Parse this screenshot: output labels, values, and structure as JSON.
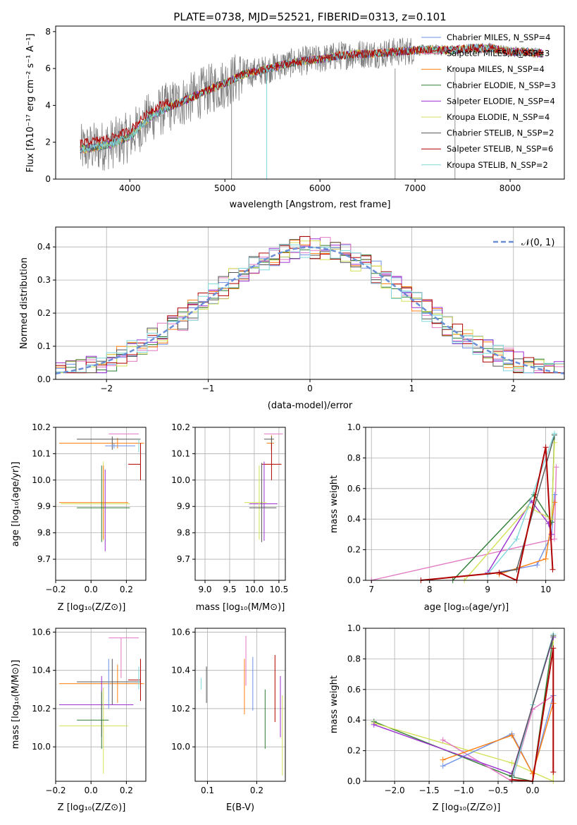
{
  "title": "PLATE=0738, MJD=52521, FIBERID=0313, z=0.101",
  "chart_data": [
    {
      "id": "spectrum",
      "type": "line",
      "xlabel": "wavelength [Angstrom, rest frame]",
      "ylabel": "Flux [fλ10⁻¹⁷ erg cm⁻² s⁻¹ A⁻¹]",
      "xlim": [
        3220,
        8570
      ],
      "ylim": [
        0,
        8.3
      ],
      "xticks": [
        4000,
        5000,
        6000,
        7000,
        8000
      ],
      "yticks": [
        0,
        2,
        4,
        6,
        8
      ],
      "legend_position": "upper-right",
      "series": [
        {
          "name": "Chabrier MILES, N_SSP=4",
          "color": "#6d8fe6"
        },
        {
          "name": "Salpeter MILES, N_SSP=3",
          "color": "#e377c2"
        },
        {
          "name": "Kroupa MILES, N_SSP=4",
          "color": "#ff7f0e"
        },
        {
          "name": "Chabrier ELODIE, N_SSP=3",
          "color": "#2e7d32"
        },
        {
          "name": "Salpeter ELODIE, N_SSP=4",
          "color": "#9b30d0"
        },
        {
          "name": "Kroupa ELODIE, N_SSP=4",
          "color": "#d4e157"
        },
        {
          "name": "Chabrier STELIB, N_SSP=2",
          "color": "#555555"
        },
        {
          "name": "Salpeter STELIB, N_SSP=6",
          "color": "#b00000"
        },
        {
          "name": "Kroupa STELIB, N_SSP=2",
          "color": "#7fd7dc"
        }
      ],
      "continuum": {
        "x": [
          3480,
          3600,
          3800,
          4000,
          4200,
          4400,
          4600,
          4800,
          5000,
          5200,
          5400,
          5600,
          5800,
          6000,
          6200,
          6400,
          6600,
          6800,
          7000,
          7200,
          7400,
          7600,
          7800,
          8000,
          8200,
          8350
        ],
        "y": [
          1.6,
          1.7,
          1.9,
          2.3,
          3.3,
          3.9,
          4.3,
          4.8,
          5.2,
          5.7,
          5.9,
          6.2,
          6.4,
          6.5,
          6.7,
          6.8,
          6.8,
          6.9,
          7.0,
          7.0,
          7.0,
          7.1,
          7.1,
          6.9,
          6.9,
          6.8
        ]
      }
    },
    {
      "id": "residuals",
      "type": "step",
      "xlabel": "(data-model)/error",
      "ylabel": "Normed distribution",
      "xlim": [
        -2.5,
        2.5
      ],
      "ylim": [
        0,
        0.46
      ],
      "xticks": [
        -2,
        -1,
        0,
        1,
        2
      ],
      "yticks": [
        0.0,
        0.1,
        0.2,
        0.3,
        0.4
      ],
      "reference_curve": {
        "name": "𝒩(0, 1)",
        "color": "#6a8fd6",
        "style": "dashed"
      },
      "bin_width": 0.1
    },
    {
      "id": "age_vs_Z",
      "type": "errorbar",
      "xlabel": "Z [log₁₀(Z/Z⊙)]",
      "ylabel": "age  [log₁₀(age/yr)]",
      "xlim": [
        -0.2,
        0.31
      ],
      "ylim": [
        9.62,
        10.2
      ],
      "xticks": [
        -0.2,
        0.0,
        0.2
      ],
      "yticks": [
        9.7,
        9.8,
        9.9,
        10.0,
        10.1,
        10.2
      ],
      "points": [
        {
          "x": 0.22,
          "y": 10.175,
          "xerr": [
            0.12,
            0.05
          ],
          "yerr": [
            0.0,
            0.0
          ],
          "series": 1
        },
        {
          "x": 0.15,
          "y": 10.14,
          "xerr": [
            0.33,
            0.15
          ],
          "yerr": [
            0.02,
            0.02
          ],
          "series": 2
        },
        {
          "x": 0.12,
          "y": 10.155,
          "xerr": [
            0.2,
            0.16
          ],
          "yerr": [
            0.04,
            0.01
          ],
          "series": 6
        },
        {
          "x": 0.13,
          "y": 10.13,
          "xerr": [
            0.05,
            0.12
          ],
          "yerr": [
            0.01,
            0.01
          ],
          "series": 0
        },
        {
          "x": 0.27,
          "y": 10.155,
          "xerr": [
            0.0,
            0.0
          ],
          "yerr": [
            0.05,
            0.0
          ],
          "series": 8
        },
        {
          "x": 0.28,
          "y": 10.06,
          "xerr": [
            0.07,
            0.0
          ],
          "yerr": [
            0.06,
            0.08
          ],
          "series": 7
        },
        {
          "x": 0.07,
          "y": 9.91,
          "xerr": [
            0.24,
            0.15
          ],
          "yerr": [
            0.14,
            0.16
          ],
          "series": 5
        },
        {
          "x": 0.07,
          "y": 9.915,
          "xerr": [
            0.25,
            0.14
          ],
          "yerr": [
            0.14,
            0.14
          ],
          "series": 2
        },
        {
          "x": 0.06,
          "y": 9.895,
          "xerr": [
            0.14,
            0.16
          ],
          "yerr": [
            0.13,
            0.16
          ],
          "series": 3
        },
        {
          "x": 0.08,
          "y": 9.9,
          "xerr": [
            0.0,
            0.0
          ],
          "yerr": [
            0.17,
            0.14
          ],
          "series": 4
        }
      ]
    },
    {
      "id": "age_vs_mass",
      "type": "errorbar",
      "xlabel": "mass [log₁₀(M/M⊙)]",
      "ylabel": "",
      "xlim": [
        8.8,
        10.63
      ],
      "ylim": [
        9.62,
        10.2
      ],
      "xticks": [
        9.0,
        9.5,
        10.0,
        10.5
      ],
      "yticks": [
        9.7,
        9.8,
        9.9,
        10.0,
        10.1,
        10.2
      ],
      "points": [
        {
          "x": 10.4,
          "y": 10.175,
          "xerr": [
            0.2,
            0.18
          ],
          "yerr": [
            0.0,
            0.0
          ],
          "series": 1
        },
        {
          "x": 10.35,
          "y": 10.14,
          "xerr": [
            0.1,
            0.05
          ],
          "yerr": [
            0.03,
            0.03
          ],
          "series": 2
        },
        {
          "x": 10.35,
          "y": 10.155,
          "xerr": [
            0.15,
            0.05
          ],
          "yerr": [
            0.04,
            0.01
          ],
          "series": 6
        },
        {
          "x": 10.35,
          "y": 10.06,
          "xerr": [
            0.2,
            0.2
          ],
          "yerr": [
            0.06,
            0.08
          ],
          "series": 7
        },
        {
          "x": 10.2,
          "y": 9.91,
          "xerr": [
            0.3,
            0.27
          ],
          "yerr": [
            0.14,
            0.16
          ],
          "series": 4
        },
        {
          "x": 10.1,
          "y": 9.915,
          "xerr": [
            0.3,
            0.15
          ],
          "yerr": [
            0.14,
            0.14
          ],
          "series": 5
        },
        {
          "x": 10.15,
          "y": 9.895,
          "xerr": [
            0.25,
            0.3
          ],
          "yerr": [
            0.13,
            0.17
          ],
          "series": 6
        }
      ]
    },
    {
      "id": "weights_vs_age",
      "type": "line",
      "xlabel": "age  [log₁₀(age/yr)]",
      "ylabel": "mass weight",
      "xlim": [
        6.9,
        10.32
      ],
      "ylim": [
        0,
        1.0
      ],
      "xticks": [
        7,
        8,
        9,
        10
      ],
      "yticks": [
        0.0,
        0.2,
        0.4,
        0.6,
        0.8,
        1.0
      ]
    },
    {
      "id": "mass_vs_Z",
      "type": "errorbar",
      "xlabel": "Z [log₁₀(Z/Z⊙)]",
      "ylabel": "mass [log₁₀(M/M⊙)]",
      "xlim": [
        -0.2,
        0.31
      ],
      "ylim": [
        9.82,
        10.62
      ],
      "xticks": [
        -0.2,
        0.0,
        0.2
      ],
      "yticks": [
        10.0,
        10.2,
        10.4,
        10.6
      ],
      "points": [
        {
          "x": 0.22,
          "y": 10.57,
          "xerr": [
            0.12,
            0.05
          ],
          "yerr": [
            0.0,
            0.0
          ],
          "series": 1
        },
        {
          "x": 0.17,
          "y": 10.48,
          "xerr": [
            0.0,
            0.0
          ],
          "yerr": [
            0.12,
            0.09
          ],
          "series": 1
        },
        {
          "x": 0.15,
          "y": 10.33,
          "xerr": [
            0.33,
            0.15
          ],
          "yerr": [
            0.1,
            0.1
          ],
          "series": 2
        },
        {
          "x": 0.12,
          "y": 10.34,
          "xerr": [
            0.2,
            0.16
          ],
          "yerr": [
            0.12,
            0.12
          ],
          "series": 6
        },
        {
          "x": 0.28,
          "y": 10.35,
          "xerr": [
            0.07,
            0.0
          ],
          "yerr": [
            0.11,
            0.11
          ],
          "series": 7
        },
        {
          "x": 0.27,
          "y": 10.38,
          "xerr": [
            0.0,
            0.0
          ],
          "yerr": [
            0.08,
            0.04
          ],
          "series": 8
        },
        {
          "x": 0.06,
          "y": 10.22,
          "xerr": [
            0.24,
            0.18
          ],
          "yerr": [
            0.17,
            0.15
          ],
          "series": 4
        },
        {
          "x": 0.07,
          "y": 10.11,
          "xerr": [
            0.25,
            0.14
          ],
          "yerr": [
            0.25,
            0.2
          ],
          "series": 5
        },
        {
          "x": 0.06,
          "y": 10.14,
          "xerr": [
            0.14,
            0.04
          ],
          "yerr": [
            0.15,
            0.15
          ],
          "series": 3
        },
        {
          "x": 0.1,
          "y": 10.35,
          "xerr": [
            0.0,
            0.0
          ],
          "yerr": [
            0.15,
            0.11
          ],
          "series": 0
        }
      ]
    },
    {
      "id": "mass_vs_ebv",
      "type": "errorbar",
      "xlabel": "E(B-V)",
      "ylabel": "",
      "xlim": [
        0.075,
        0.258
      ],
      "ylim": [
        9.82,
        10.62
      ],
      "xticks": [
        0.1,
        0.2
      ],
      "yticks": [
        10.0,
        10.2,
        10.4,
        10.6
      ],
      "points": [
        {
          "x": 0.087,
          "y": 10.33,
          "yerr": [
            0.03,
            0.03
          ],
          "series": 8
        },
        {
          "x": 0.098,
          "y": 10.33,
          "yerr": [
            0.1,
            0.09
          ],
          "series": 6
        },
        {
          "x": 0.175,
          "y": 10.32,
          "yerr": [
            0.15,
            0.14
          ],
          "series": 2
        },
        {
          "x": 0.178,
          "y": 10.48,
          "yerr": [
            0.16,
            0.1
          ],
          "series": 1
        },
        {
          "x": 0.192,
          "y": 10.33,
          "yerr": [
            0.14,
            0.14
          ],
          "series": 0
        },
        {
          "x": 0.217,
          "y": 10.14,
          "yerr": [
            0.15,
            0.16
          ],
          "series": 3
        },
        {
          "x": 0.237,
          "y": 10.31,
          "yerr": [
            0.18,
            0.17
          ],
          "series": 7
        },
        {
          "x": 0.248,
          "y": 10.22,
          "yerr": [
            0.17,
            0.15
          ],
          "series": 4
        },
        {
          "x": 0.252,
          "y": 10.05,
          "yerr": [
            0.2,
            0.22
          ],
          "series": 5
        }
      ]
    },
    {
      "id": "weights_vs_Z",
      "type": "line",
      "xlabel": "Z [log₁₀(Z/Z⊙)]",
      "ylabel": "mass weight",
      "xlim": [
        -2.42,
        0.46
      ],
      "ylim": [
        0,
        1.0
      ],
      "xticks": [
        -2.0,
        -1.5,
        -1.0,
        -0.5,
        0.0
      ],
      "yticks": [
        0.0,
        0.2,
        0.4,
        0.6,
        0.8,
        1.0
      ]
    }
  ]
}
